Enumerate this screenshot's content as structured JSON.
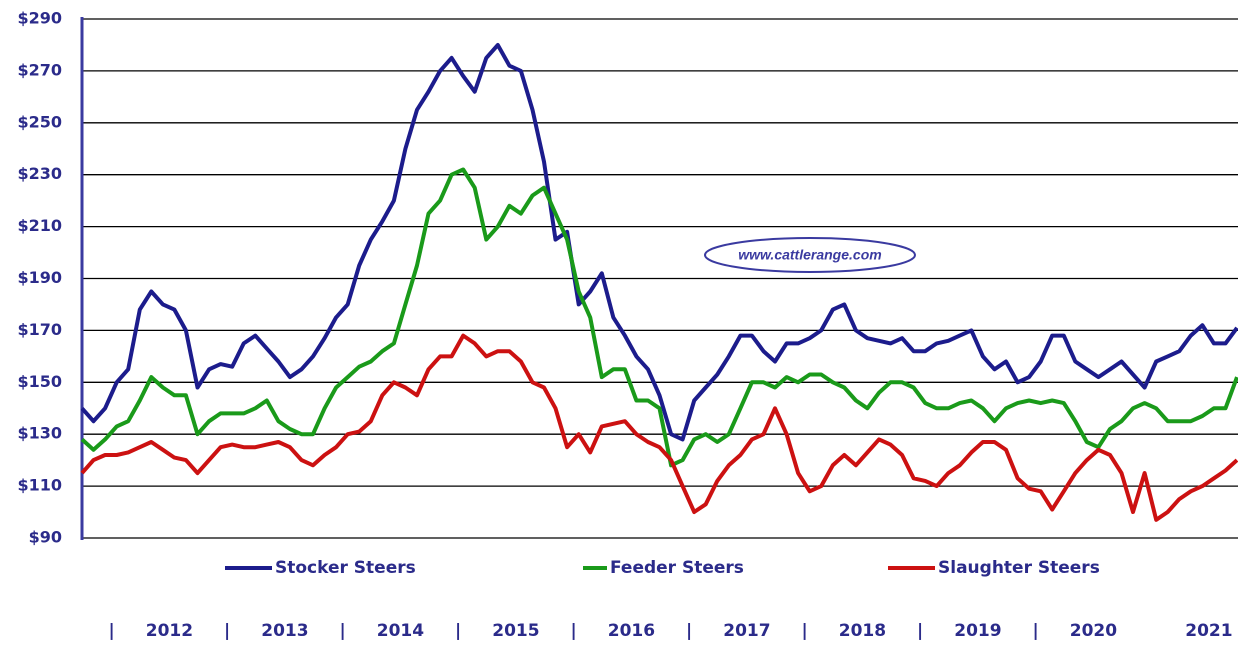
{
  "chart_data": {
    "type": "line",
    "watermark": "www.cattlerange.com",
    "separator": "|",
    "categories": [
      null,
      null,
      null,
      null,
      null,
      null,
      null,
      null,
      "2012",
      null,
      null,
      null,
      null,
      null,
      null,
      null,
      null,
      null,
      "2013",
      null,
      null,
      null,
      null,
      null,
      null,
      null,
      null,
      null,
      "2014",
      null,
      null,
      null,
      null,
      null,
      null,
      null,
      null,
      null,
      "2015",
      null,
      null,
      null,
      null,
      null,
      null,
      null,
      null,
      null,
      "2016",
      null,
      null,
      null,
      null,
      null,
      null,
      null,
      null,
      null,
      "2017",
      null,
      null,
      null,
      null,
      null,
      null,
      null,
      null,
      null,
      "2018",
      null,
      null,
      null,
      null,
      null,
      null,
      null,
      null,
      null,
      "2019",
      null,
      null,
      null,
      null,
      null,
      null,
      null,
      null,
      null,
      "2020",
      null,
      null,
      null,
      null,
      null,
      null,
      null,
      null,
      null,
      "2021",
      null,
      null
    ],
    "ylim": [
      90,
      290
    ],
    "yticks": [
      {
        "value": 90,
        "label": "$90"
      },
      {
        "value": 110,
        "label": "$110"
      },
      {
        "value": 130,
        "label": "$130"
      },
      {
        "value": 150,
        "label": "$150"
      },
      {
        "value": 170,
        "label": "$170"
      },
      {
        "value": 190,
        "label": "$190"
      },
      {
        "value": 210,
        "label": "$210"
      },
      {
        "value": 230,
        "label": "$230"
      },
      {
        "value": 250,
        "label": "$250"
      },
      {
        "value": 270,
        "label": "$270"
      },
      {
        "value": 290,
        "label": "$290"
      }
    ],
    "grid": true,
    "series": [
      {
        "name": "Stocker Steers",
        "color": "#1c1c8c",
        "values": [
          140,
          135,
          140,
          150,
          155,
          178,
          185,
          180,
          178,
          170,
          148,
          155,
          157,
          156,
          165,
          168,
          163,
          158,
          152,
          155,
          160,
          167,
          175,
          180,
          195,
          205,
          212,
          220,
          240,
          255,
          262,
          270,
          275,
          268,
          262,
          275,
          280,
          272,
          270,
          255,
          235,
          205,
          208,
          180,
          185,
          192,
          175,
          168,
          160,
          155,
          145,
          130,
          128,
          143,
          148,
          153,
          160,
          168,
          168,
          162,
          158,
          165,
          165,
          167,
          170,
          178,
          180,
          170,
          167,
          166,
          165,
          167,
          162,
          162,
          165,
          166,
          168,
          170,
          160,
          155,
          158,
          150,
          152,
          158,
          168,
          168,
          158,
          155,
          152,
          155,
          158,
          153,
          148,
          158,
          160,
          162,
          168,
          172,
          165,
          165,
          171
        ]
      },
      {
        "name": "Feeder Steers",
        "color": "#1a9a1a",
        "values": [
          128,
          124,
          128,
          133,
          135,
          143,
          152,
          148,
          145,
          145,
          130,
          135,
          138,
          138,
          138,
          140,
          143,
          135,
          132,
          130,
          130,
          140,
          148,
          152,
          156,
          158,
          162,
          165,
          180,
          195,
          215,
          220,
          230,
          232,
          225,
          205,
          210,
          218,
          215,
          222,
          225,
          215,
          205,
          185,
          175,
          152,
          155,
          155,
          143,
          143,
          140,
          118,
          120,
          128,
          130,
          127,
          130,
          140,
          150,
          150,
          148,
          152,
          150,
          153,
          153,
          150,
          148,
          143,
          140,
          146,
          150,
          150,
          148,
          142,
          140,
          140,
          142,
          143,
          140,
          135,
          140,
          142,
          143,
          142,
          143,
          142,
          135,
          127,
          125,
          132,
          135,
          140,
          142,
          140,
          135,
          135,
          135,
          137,
          140,
          140,
          152
        ]
      },
      {
        "name": "Slaughter Steers",
        "color": "#cc1111",
        "values": [
          115,
          120,
          122,
          122,
          123,
          125,
          127,
          124,
          121,
          120,
          115,
          120,
          125,
          126,
          125,
          125,
          126,
          127,
          125,
          120,
          118,
          122,
          125,
          130,
          131,
          135,
          145,
          150,
          148,
          145,
          155,
          160,
          160,
          168,
          165,
          160,
          162,
          162,
          158,
          150,
          148,
          140,
          125,
          130,
          123,
          133,
          134,
          135,
          130,
          127,
          125,
          120,
          110,
          100,
          103,
          112,
          118,
          122,
          128,
          130,
          140,
          130,
          115,
          108,
          110,
          118,
          122,
          118,
          123,
          128,
          126,
          122,
          113,
          112,
          110,
          115,
          118,
          123,
          127,
          127,
          124,
          113,
          109,
          108,
          101,
          108,
          115,
          120,
          124,
          122,
          115,
          100,
          115,
          97,
          100,
          105,
          108,
          110,
          113,
          116,
          120
        ]
      }
    ],
    "legend": "bottom"
  }
}
